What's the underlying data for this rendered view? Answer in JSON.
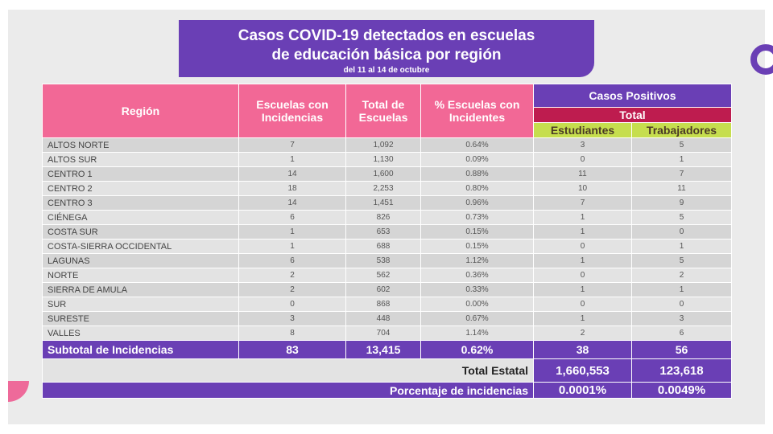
{
  "title": {
    "line1": "Casos COVID-19 detectados en escuelas",
    "line2": "de educación básica por región",
    "subtitle": "del 11 al 14 de octubre"
  },
  "headers": {
    "region": "Región",
    "escuelas_incidencias": "Escuelas con Incidencias",
    "total_escuelas": "Total de Escuelas",
    "pct_escuelas": "% Escuelas con Incidentes",
    "casos_positivos": "Casos Positivos",
    "total": "Total",
    "estudiantes": "Estudiantes",
    "trabajadores": "Trabajadores"
  },
  "rows": [
    {
      "region": "ALTOS NORTE",
      "escuelas": "7",
      "total": "1,092",
      "pct": "0.64%",
      "estudiantes": "3",
      "trabajadores": "5"
    },
    {
      "region": "ALTOS SUR",
      "escuelas": "1",
      "total": "1,130",
      "pct": "0.09%",
      "estudiantes": "0",
      "trabajadores": "1"
    },
    {
      "region": "CENTRO 1",
      "escuelas": "14",
      "total": "1,600",
      "pct": "0.88%",
      "estudiantes": "11",
      "trabajadores": "7"
    },
    {
      "region": "CENTRO 2",
      "escuelas": "18",
      "total": "2,253",
      "pct": "0.80%",
      "estudiantes": "10",
      "trabajadores": "11"
    },
    {
      "region": "CENTRO 3",
      "escuelas": "14",
      "total": "1,451",
      "pct": "0.96%",
      "estudiantes": "7",
      "trabajadores": "9"
    },
    {
      "region": "CIÉNEGA",
      "escuelas": "6",
      "total": "826",
      "pct": "0.73%",
      "estudiantes": "1",
      "trabajadores": "5"
    },
    {
      "region": "COSTA SUR",
      "escuelas": "1",
      "total": "653",
      "pct": "0.15%",
      "estudiantes": "1",
      "trabajadores": "0"
    },
    {
      "region": "COSTA-SIERRA OCCIDENTAL",
      "escuelas": "1",
      "total": "688",
      "pct": "0.15%",
      "estudiantes": "0",
      "trabajadores": "1"
    },
    {
      "region": "LAGUNAS",
      "escuelas": "6",
      "total": "538",
      "pct": "1.12%",
      "estudiantes": "1",
      "trabajadores": "5"
    },
    {
      "region": "NORTE",
      "escuelas": "2",
      "total": "562",
      "pct": "0.36%",
      "estudiantes": "0",
      "trabajadores": "2"
    },
    {
      "region": "SIERRA DE AMULA",
      "escuelas": "2",
      "total": "602",
      "pct": "0.33%",
      "estudiantes": "1",
      "trabajadores": "1"
    },
    {
      "region": "SUR",
      "escuelas": "0",
      "total": "868",
      "pct": "0.00%",
      "estudiantes": "0",
      "trabajadores": "0"
    },
    {
      "region": "SURESTE",
      "escuelas": "3",
      "total": "448",
      "pct": "0.67%",
      "estudiantes": "1",
      "trabajadores": "3"
    },
    {
      "region": "VALLES",
      "escuelas": "8",
      "total": "704",
      "pct": "1.14%",
      "estudiantes": "2",
      "trabajadores": "6"
    }
  ],
  "subtotal": {
    "label": "Subtotal de Incidencias",
    "escuelas": "83",
    "total": "13,415",
    "pct": "0.62%",
    "estudiantes": "38",
    "trabajadores": "56"
  },
  "total_estatal": {
    "label": "Total Estatal",
    "estudiantes": "1,660,553",
    "trabajadores": "123,618"
  },
  "porcentaje": {
    "label": "Porcentaje de incidencias",
    "estudiantes": "0.0001%",
    "trabajadores": "0.0049%"
  },
  "colors": {
    "purple": "#6a3fb5",
    "pink": "#f26896",
    "red": "#be1c4f",
    "green": "#c6de4e"
  }
}
